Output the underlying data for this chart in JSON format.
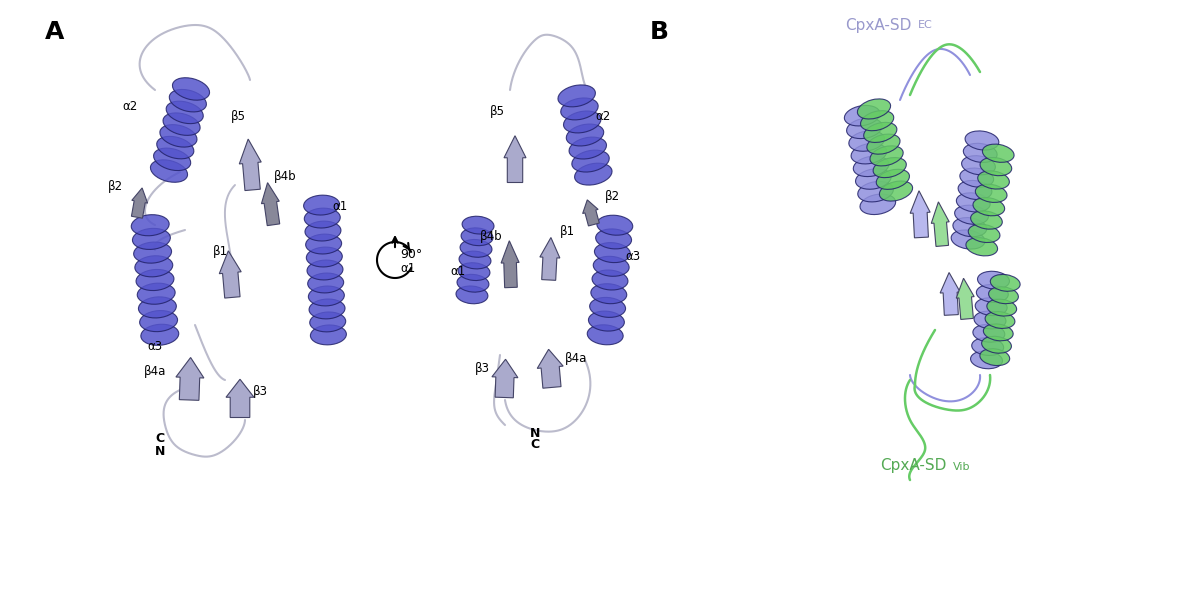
{
  "background_color": "#ffffff",
  "label_A": "A",
  "label_B": "B",
  "title_EC": "CpxA-SD",
  "title_EC_sub": "EC",
  "title_Vib": "CpxA-SD",
  "title_Vib_sub": "Vib",
  "color_helix_blue": "#5555cc",
  "color_helix_light": "#9999dd",
  "color_sheet_light": "#aaaacc",
  "color_sheet_gray": "#888899",
  "color_loop": "#ccccdd",
  "color_green": "#66cc66",
  "color_green_light": "#99dd99",
  "rotation_label": "90°",
  "panel_A_labels": [
    "α2",
    "β2",
    "β5",
    "β4b",
    "α1",
    "α1",
    "β1",
    "β4a",
    "β3",
    "α3",
    "C",
    "N"
  ],
  "panel_B_label_EC_color": "#9999cc",
  "panel_B_label_Vib_color": "#55aa55"
}
